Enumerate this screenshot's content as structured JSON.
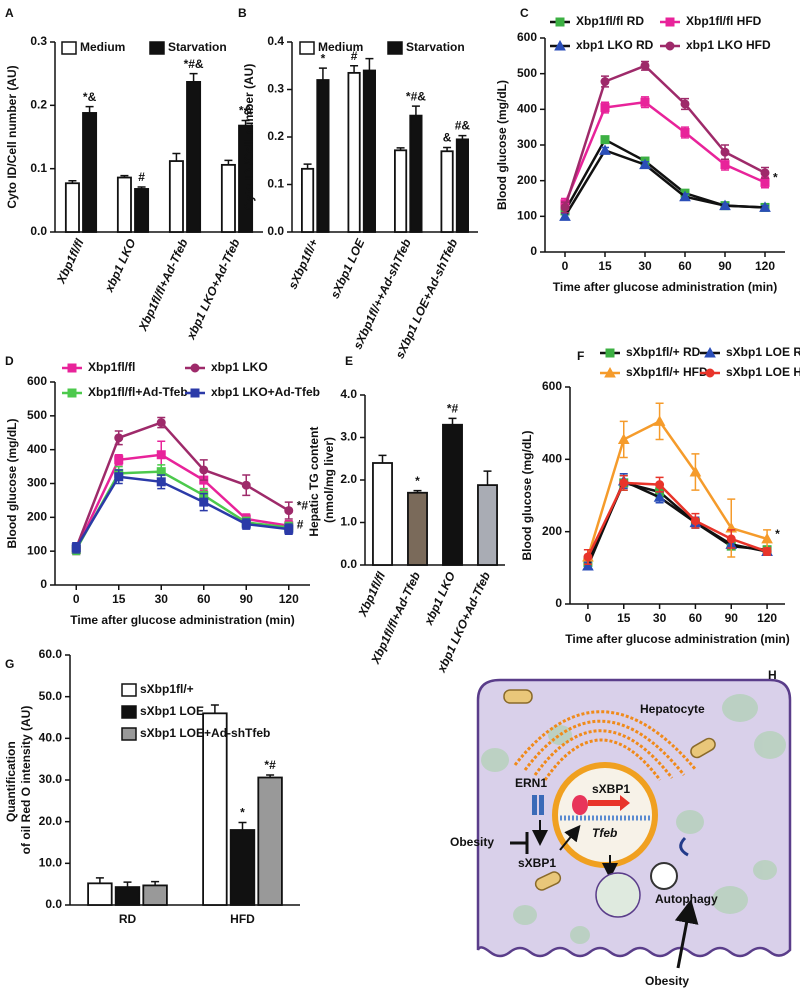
{
  "chart_data": [
    {
      "type": "bar",
      "label": "A",
      "y_label": "Cyto ID/Cell number (AU)",
      "categories": [
        "Xbp1fl/fl",
        "xbp1 LKO",
        "Xbp1fl/fl+Ad-Tfeb",
        "xbp1 LKO+Ad-Tfeb"
      ],
      "series": [
        {
          "name": "Medium",
          "color": "#ffffff",
          "values": [
            0.077,
            0.086,
            0.112,
            0.106
          ],
          "errors": [
            0.004,
            0.003,
            0.012,
            0.007
          ]
        },
        {
          "name": "Starvation",
          "color": "#111111",
          "values": [
            0.188,
            0.068,
            0.237,
            0.168
          ],
          "errors": [
            0.01,
            0.003,
            0.013,
            0.008
          ],
          "annotations": [
            "*&",
            "#",
            "*#&",
            "*&"
          ]
        }
      ],
      "ylim": [
        0,
        0.3
      ],
      "yticks": [
        {
          "value": 0,
          "label": "0.0"
        },
        0.1,
        0.2,
        0.3
      ]
    },
    {
      "type": "bar",
      "label": "B",
      "y_label": "Cyto ID /Cell number (AU)",
      "categories": [
        "sXbp1fl/+",
        "sXbp1 LOE",
        "sXbp1fl/++Ad-shTfeb",
        "sXbp1 LOE+Ad-shTfeb"
      ],
      "series": [
        {
          "name": "Medium",
          "color": "#ffffff",
          "values": [
            0.133,
            0.335,
            0.172,
            0.17
          ],
          "errors": [
            0.01,
            0.015,
            0.005,
            0.008
          ],
          "annotations": [
            null,
            "#",
            null,
            "&"
          ]
        },
        {
          "name": "Starvation",
          "color": "#111111",
          "values": [
            0.32,
            0.34,
            0.245,
            0.195
          ],
          "errors": [
            0.025,
            0.025,
            0.02,
            0.008
          ],
          "annotations": [
            "*",
            null,
            "*#&",
            "#&"
          ]
        }
      ],
      "ylim": [
        0,
        0.4
      ],
      "yticks": [
        {
          "value": 0,
          "label": "0.0"
        },
        0.1,
        0.2,
        0.3,
        0.4
      ]
    },
    {
      "type": "line",
      "label": "C",
      "x_label": "Time after glucose administration (min)",
      "y_label": "Blood glucose (mg/dL)",
      "categories": [
        "0",
        "15",
        "30",
        "60",
        "90",
        "120"
      ],
      "series": [
        {
          "name": "Xbp1fl/fl RD",
          "color": "#3cb043",
          "line_color": "#111111",
          "marker": "square",
          "values": [
            115,
            315,
            255,
            165,
            130,
            125
          ],
          "errors": [
            8,
            8,
            8,
            8,
            5,
            5
          ]
        },
        {
          "name": "xbp1 LKO RD",
          "color": "#2b4eb8",
          "line_color": "#111111",
          "marker": "triangle",
          "values": [
            100,
            285,
            245,
            155,
            130,
            125
          ],
          "errors": [
            8,
            8,
            8,
            8,
            5,
            5
          ]
        },
        {
          "name": "Xbp1fl/fl HFD",
          "color": "#e8239a",
          "marker": "square",
          "values": [
            135,
            405,
            420,
            335,
            245,
            195
          ],
          "errors": [
            15,
            15,
            15,
            15,
            15,
            15
          ],
          "annotation": "*"
        },
        {
          "name": "xbp1 LKO HFD",
          "color": "#9e2a6a",
          "marker": "circle",
          "values": [
            125,
            478,
            522,
            415,
            280,
            222
          ],
          "errors": [
            15,
            15,
            12,
            15,
            20,
            15
          ]
        }
      ],
      "ylim": [
        0,
        600
      ],
      "yticks": [
        0,
        100,
        200,
        300,
        400,
        500,
        600
      ]
    },
    {
      "type": "line",
      "label": "D",
      "x_label": "Time after glucose administration (min)",
      "y_label": "Blood glucose (mg/dL)",
      "categories": [
        "0",
        "15",
        "30",
        "60",
        "90",
        "120"
      ],
      "series": [
        {
          "name": "Xbp1fl/fl",
          "color": "#e8239a",
          "marker": "square",
          "values": [
            105,
            370,
            385,
            310,
            195,
            175
          ],
          "errors": [
            15,
            15,
            40,
            30,
            15,
            15
          ]
        },
        {
          "name": "xbp1 LKO",
          "color": "#9e2a6a",
          "marker": "circle",
          "values": [
            110,
            435,
            480,
            340,
            295,
            220
          ],
          "errors": [
            15,
            20,
            15,
            30,
            30,
            25
          ],
          "annotation": "*#"
        },
        {
          "name": "Xbp1fl/fl+Ad-Tfeb",
          "color": "#4cc94c",
          "marker": "square",
          "values": [
            105,
            330,
            335,
            265,
            185,
            170
          ],
          "errors": [
            15,
            20,
            20,
            20,
            15,
            15
          ]
        },
        {
          "name": "xbp1 LKO+Ad-Tfeb",
          "color": "#2b3aa8",
          "marker": "square",
          "values": [
            110,
            320,
            305,
            245,
            180,
            165
          ],
          "errors": [
            15,
            20,
            20,
            25,
            15,
            15
          ],
          "annotation": "#"
        }
      ],
      "ylim": [
        0,
        600
      ],
      "yticks": [
        0,
        100,
        200,
        300,
        400,
        500,
        600
      ]
    },
    {
      "type": "bar",
      "label": "E",
      "y_label": "Hepatic TG content (nmol/mg liver)",
      "categories": [
        "Xbp1fl/fl",
        "Xbp1fl/fl+Ad-Tfeb",
        "xbp1 LKO",
        "xbp1 LKO+Ad-Tfeb"
      ],
      "series": [
        {
          "colors": [
            "#ffffff",
            "#7a6a5a",
            "#111111",
            "#a9acb4"
          ],
          "values": [
            2.4,
            1.7,
            3.3,
            1.88
          ],
          "errors": [
            0.18,
            0.05,
            0.15,
            0.33
          ],
          "annotations": [
            null,
            "*",
            "*#",
            null
          ]
        }
      ],
      "ylim": [
        0,
        4
      ],
      "yticks": [
        {
          "value": 0,
          "label": "0.0"
        },
        {
          "value": 1,
          "label": "1.0"
        },
        {
          "value": 2,
          "label": "2.0"
        },
        {
          "value": 3,
          "label": "3.0"
        },
        {
          "value": 4,
          "label": "4.0"
        }
      ]
    },
    {
      "type": "line",
      "label": "F",
      "x_label": "Time after glucose administration (min)",
      "y_label": "Blood glucose (mg/dL)",
      "categories": [
        "0",
        "15",
        "30",
        "60",
        "90",
        "120"
      ],
      "series": [
        {
          "name": "sXbp1fl/+ RD",
          "color": "#3cb043",
          "line_color": "#111111",
          "marker": "square",
          "values": [
            115,
            335,
            310,
            225,
            160,
            150
          ],
          "errors": [
            10,
            20,
            15,
            15,
            10,
            10
          ]
        },
        {
          "name": "sXbp1 LOE RD",
          "color": "#2b4eb8",
          "line_color": "#111111",
          "marker": "triangle",
          "values": [
            105,
            340,
            295,
            225,
            165,
            145
          ],
          "errors": [
            10,
            20,
            15,
            15,
            10,
            10
          ]
        },
        {
          "name": "sXbp1fl/+ HFD",
          "color": "#f59b2b",
          "marker": "triangle",
          "values": [
            130,
            455,
            505,
            365,
            210,
            180
          ],
          "errors": [
            20,
            50,
            50,
            50,
            80,
            25
          ],
          "annotation": "*"
        },
        {
          "name": "sXbp1 LOE HFD",
          "color": "#e8342a",
          "marker": "circle",
          "values": [
            130,
            335,
            330,
            230,
            180,
            145
          ],
          "errors": [
            20,
            20,
            20,
            20,
            25,
            10
          ]
        }
      ],
      "ylim": [
        0,
        600
      ],
      "yticks": [
        0,
        200,
        400,
        600
      ]
    },
    {
      "type": "bar",
      "label": "G",
      "y_label": "Quantification of oil Red O intensity (AU)",
      "categories": [
        "RD",
        "HFD"
      ],
      "series": [
        {
          "name": "sXbp1fl/+",
          "color": "#ffffff",
          "values": [
            5.2,
            46
          ],
          "errors": [
            1.3,
            2
          ]
        },
        {
          "name": "sXbp1 LOE",
          "color": "#111111",
          "values": [
            4.3,
            18
          ],
          "errors": [
            1.2,
            1.8
          ],
          "annotations": [
            null,
            "*"
          ]
        },
        {
          "name": "sXbp1 LOE+Ad-shTfeb",
          "color": "#999999",
          "values": [
            4.7,
            30.6
          ],
          "errors": [
            0.9,
            0.6
          ],
          "annotations": [
            null,
            "*#"
          ]
        }
      ],
      "ylim": [
        0,
        60
      ],
      "yticks": [
        {
          "value": 0,
          "label": "0.0"
        },
        {
          "value": 10,
          "label": "10.0"
        },
        {
          "value": 20,
          "label": "20.0"
        },
        {
          "value": 30,
          "label": "30.0"
        },
        {
          "value": 40,
          "label": "40.0"
        },
        {
          "value": 50,
          "label": "50.0"
        },
        {
          "value": 60,
          "label": "60.0"
        }
      ]
    }
  ],
  "diagram": {
    "label": "H",
    "cell": "Hepatocyte",
    "receptor": "ERN1",
    "nuclear_factor": "sXBP1",
    "gene": "Tfeb",
    "cytosolic_factor": "sXBP1",
    "inhibitor": "Obesity",
    "process": "Autophagy",
    "process_input": "Obesity"
  }
}
